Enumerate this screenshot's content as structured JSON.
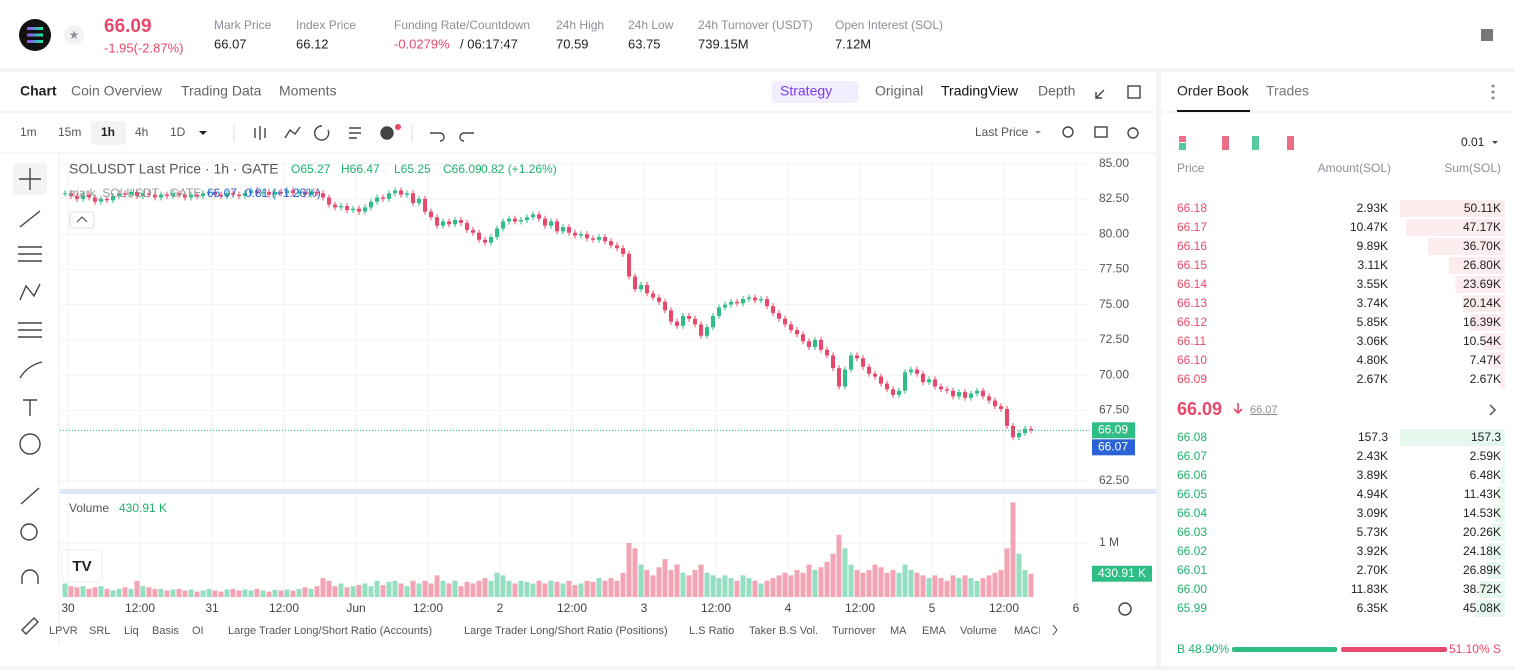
{
  "header": {
    "price": "66.09",
    "change": "-1.95(-2.87%)",
    "stats": [
      {
        "label": "Mark Price",
        "value": "66.07"
      },
      {
        "label": "Index Price",
        "value": "66.12"
      },
      {
        "label": "Funding Rate/Countdown",
        "value": "-0.0279%",
        "extra": "/ 06:17:47"
      },
      {
        "label": "24h High",
        "value": "70.59"
      },
      {
        "label": "24h Low",
        "value": "63.75"
      },
      {
        "label": "24h Turnover (USDT)",
        "value": "739.15M"
      },
      {
        "label": "Open Interest (SOL)",
        "value": "7.12M"
      }
    ]
  },
  "tabs": [
    "Chart",
    "Coin Overview",
    "Trading Data",
    "Moments"
  ],
  "views": [
    "Strategy",
    "Original",
    "TradingView",
    "Depth"
  ],
  "intervals": [
    "1m",
    "15m",
    "1h",
    "4h",
    "1D"
  ],
  "price_source": "Last Price",
  "indicators": [
    "LPVR",
    "SRL",
    "Liq",
    "Basis",
    "OI",
    "Large Trader Long/Short Ratio (Accounts)",
    "Large Trader Long/Short Ratio (Positions)",
    "L.S Ratio",
    "Taker B.S Vol.",
    "Turnover",
    "MA",
    "EMA",
    "Volume",
    "MACD"
  ],
  "chart_data": [
    {
      "type": "candlestick",
      "title": "SOLUSDT Last Price · 1h · GATE",
      "ohlc_labels": [
        "O65.27",
        "H66.47",
        "L65.25",
        "C66.09",
        "0.82 (+1.26%)"
      ],
      "mark_label": "mark_SOLUSDT · GATE",
      "mark_values": [
        "66.07",
        "0.81 (+1.26%)"
      ],
      "mark_price_label": "66.07",
      "up_color": "#2ebd85",
      "down_color": "#e8496a",
      "values": [
        82.9,
        82.7,
        82.5,
        82.8,
        82.6,
        82.3,
        82.5,
        82.4,
        82.7,
        82.9,
        82.8,
        83.0,
        82.7,
        82.9,
        82.8,
        82.6,
        82.8,
        82.7,
        82.9,
        82.8,
        82.6,
        82.8,
        82.7,
        82.9,
        83.0,
        82.8,
        82.7,
        82.9,
        82.8,
        82.7,
        82.9,
        83.1,
        82.9,
        83.0,
        82.8,
        83.0,
        82.9,
        83.1,
        82.9,
        83.0,
        82.8,
        83.0,
        82.9,
        82.6,
        82.1,
        81.9,
        82.0,
        81.7,
        81.8,
        81.6,
        81.9,
        82.3,
        82.6,
        82.5,
        82.9,
        83.1,
        82.8,
        82.9,
        82.2,
        82.5,
        81.6,
        81.2,
        80.6,
        80.9,
        80.7,
        81.0,
        80.8,
        80.3,
        80.1,
        79.6,
        79.4,
        79.8,
        80.4,
        80.9,
        81.1,
        80.9,
        81.0,
        81.2,
        81.4,
        81.1,
        80.6,
        80.9,
        80.2,
        80.5,
        80.1,
        79.9,
        80.0,
        79.7,
        79.6,
        79.8,
        79.5,
        79.2,
        79.0,
        78.6,
        77.0,
        76.1,
        76.4,
        75.8,
        75.5,
        75.2,
        74.6,
        73.8,
        73.5,
        74.2,
        74.0,
        73.6,
        72.8,
        73.4,
        74.2,
        74.8,
        75.0,
        75.2,
        75.1,
        75.4,
        75.5,
        75.3,
        75.4,
        74.9,
        74.4,
        74.0,
        73.6,
        73.2,
        72.9,
        72.4,
        72.0,
        72.5,
        71.8,
        71.4,
        70.5,
        69.2,
        70.4,
        71.4,
        71.2,
        70.6,
        70.1,
        69.9,
        69.4,
        69.0,
        68.6,
        68.9,
        70.2,
        70.4,
        70.1,
        69.5,
        69.7,
        69.2,
        69.0,
        68.9,
        68.5,
        68.8,
        68.4,
        68.7,
        68.9,
        68.5,
        68.2,
        67.8,
        67.6,
        66.4,
        65.6,
        65.9,
        66.2,
        66.09
      ],
      "ylim": [
        62,
        85.4
      ],
      "yticks": [
        {
          "value": 62.5,
          "label": "62.50"
        },
        {
          "value": 67.5,
          "label": "67.50"
        },
        {
          "value": 70,
          "label": "70.00"
        },
        {
          "value": 72.5,
          "label": "72.50"
        },
        {
          "value": 75,
          "label": "75.00"
        },
        {
          "value": 77.5,
          "label": "77.50"
        },
        {
          "value": 80,
          "label": "80.00"
        },
        {
          "value": 82.5,
          "label": "82.50"
        },
        {
          "value": 85,
          "label": "85.00"
        }
      ],
      "x_labels": [
        "30",
        "12:00",
        "31",
        "12:00",
        "Jun",
        "12:00",
        "2",
        "12:00",
        "3",
        "12:00",
        "4",
        "12:00",
        "5",
        "12:00",
        "6"
      ]
    },
    {
      "type": "bar",
      "title": "Volume",
      "last_value_label": "430.91 K",
      "values": [
        0.25,
        0.2,
        0.18,
        0.2,
        0.15,
        0.18,
        0.2,
        0.15,
        0.12,
        0.15,
        0.18,
        0.15,
        0.3,
        0.2,
        0.18,
        0.15,
        0.15,
        0.12,
        0.14,
        0.15,
        0.12,
        0.14,
        0.1,
        0.12,
        0.15,
        0.12,
        0.1,
        0.14,
        0.15,
        0.12,
        0.14,
        0.12,
        0.15,
        0.12,
        0.1,
        0.13,
        0.12,
        0.14,
        0.12,
        0.15,
        0.18,
        0.15,
        0.2,
        0.35,
        0.3,
        0.2,
        0.25,
        0.18,
        0.2,
        0.22,
        0.25,
        0.2,
        0.3,
        0.22,
        0.28,
        0.3,
        0.25,
        0.2,
        0.3,
        0.25,
        0.3,
        0.25,
        0.4,
        0.3,
        0.25,
        0.3,
        0.2,
        0.28,
        0.25,
        0.3,
        0.35,
        0.3,
        0.45,
        0.4,
        0.3,
        0.25,
        0.3,
        0.28,
        0.25,
        0.3,
        0.25,
        0.3,
        0.28,
        0.25,
        0.3,
        0.22,
        0.25,
        0.3,
        0.28,
        0.35,
        0.3,
        0.35,
        0.3,
        0.45,
        1.0,
        0.9,
        0.6,
        0.5,
        0.4,
        0.55,
        0.7,
        0.5,
        0.6,
        0.45,
        0.4,
        0.5,
        0.6,
        0.45,
        0.4,
        0.35,
        0.4,
        0.35,
        0.3,
        0.4,
        0.35,
        0.3,
        0.25,
        0.3,
        0.35,
        0.4,
        0.45,
        0.4,
        0.5,
        0.45,
        0.6,
        0.5,
        0.55,
        0.65,
        0.8,
        1.15,
        0.9,
        0.6,
        0.5,
        0.45,
        0.5,
        0.6,
        0.55,
        0.45,
        0.5,
        0.45,
        0.6,
        0.5,
        0.45,
        0.4,
        0.35,
        0.4,
        0.35,
        0.3,
        0.4,
        0.35,
        0.4,
        0.35,
        0.3,
        0.35,
        0.4,
        0.45,
        0.5,
        0.9,
        1.75,
        0.8,
        0.5,
        0.43091
      ],
      "ylim": [
        0,
        1.85
      ],
      "yticks": [
        {
          "value": 1,
          "label": "1 M"
        }
      ]
    }
  ],
  "order_book": {
    "tabs": [
      "Order Book",
      "Trades"
    ],
    "precision": "0.01",
    "headers": [
      "Price",
      "Amount(SOL)",
      "Sum(SOL)"
    ],
    "asks": [
      {
        "price": "66.18",
        "amount": "2.93K",
        "sum": "50.11K"
      },
      {
        "price": "66.17",
        "amount": "10.47K",
        "sum": "47.17K"
      },
      {
        "price": "66.16",
        "amount": "9.89K",
        "sum": "36.70K"
      },
      {
        "price": "66.15",
        "amount": "3.11K",
        "sum": "26.80K"
      },
      {
        "price": "66.14",
        "amount": "3.55K",
        "sum": "23.69K"
      },
      {
        "price": "66.13",
        "amount": "3.74K",
        "sum": "20.14K"
      },
      {
        "price": "66.12",
        "amount": "5.85K",
        "sum": "16.39K"
      },
      {
        "price": "66.11",
        "amount": "3.06K",
        "sum": "10.54K"
      },
      {
        "price": "66.10",
        "amount": "4.80K",
        "sum": "7.47K"
      },
      {
        "price": "66.09",
        "amount": "2.67K",
        "sum": "2.67K"
      }
    ],
    "last": "66.09",
    "mark": "66.07",
    "bids": [
      {
        "price": "66.08",
        "amount": "157.3",
        "sum": "157.3"
      },
      {
        "price": "66.07",
        "amount": "2.43K",
        "sum": "2.59K"
      },
      {
        "price": "66.06",
        "amount": "3.89K",
        "sum": "6.48K"
      },
      {
        "price": "66.05",
        "amount": "4.94K",
        "sum": "11.43K"
      },
      {
        "price": "66.04",
        "amount": "3.09K",
        "sum": "14.53K"
      },
      {
        "price": "66.03",
        "amount": "5.73K",
        "sum": "20.26K"
      },
      {
        "price": "66.02",
        "amount": "3.92K",
        "sum": "24.18K"
      },
      {
        "price": "66.01",
        "amount": "2.70K",
        "sum": "26.89K"
      },
      {
        "price": "66.00",
        "amount": "11.83K",
        "sum": "38.72K"
      },
      {
        "price": "65.99",
        "amount": "6.35K",
        "sum": "45.08K"
      }
    ],
    "buy_ratio": "B 48.90%",
    "sell_ratio": "51.10% S"
  }
}
